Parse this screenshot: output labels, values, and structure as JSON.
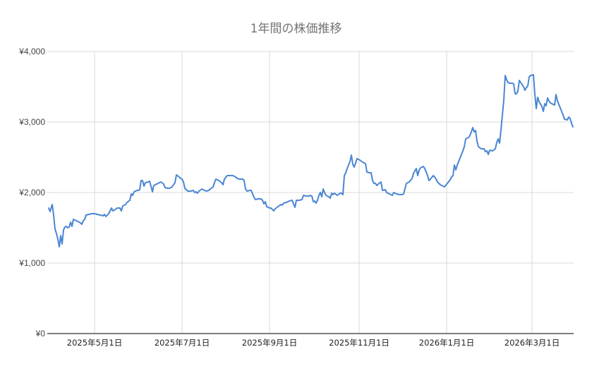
{
  "title": "1年間の株価推移",
  "colors": {
    "line": "#4a86d4",
    "grid": "#d9d9d9",
    "axis": "#333333",
    "title": "#757575"
  },
  "chart_data": {
    "type": "line",
    "title": "1年間の株価推移",
    "xlabel": "",
    "ylabel": "",
    "ylim": [
      0,
      4000
    ],
    "y_ticks": [
      "¥0",
      "¥1,000",
      "¥2,000",
      "¥3,000",
      "¥4,000"
    ],
    "x_ticks": [
      "2025年5月1日",
      "2025年7月1日",
      "2025年9月1日",
      "2025年11月1日",
      "2026年1月1日",
      "2026年3月1日"
    ],
    "x_range": [
      "2025-03-31",
      "2026-03-31"
    ],
    "grid": true,
    "legend": "none",
    "series": [
      {
        "name": "株価",
        "points": [
          [
            69,
            1780
          ],
          [
            71,
            1730
          ],
          [
            74,
            1830
          ],
          [
            76,
            1680
          ],
          [
            78,
            1480
          ],
          [
            80,
            1420
          ],
          [
            82,
            1340
          ],
          [
            84,
            1230
          ],
          [
            86,
            1390
          ],
          [
            88,
            1270
          ],
          [
            90,
            1470
          ],
          [
            92,
            1510
          ],
          [
            94,
            1520
          ],
          [
            96,
            1500
          ],
          [
            98,
            1510
          ],
          [
            100,
            1580
          ],
          [
            102,
            1520
          ],
          [
            104,
            1620
          ],
          [
            106,
            1610
          ],
          [
            110,
            1590
          ],
          [
            114,
            1570
          ],
          [
            116,
            1550
          ],
          [
            118,
            1600
          ],
          [
            120,
            1620
          ],
          [
            122,
            1680
          ],
          [
            126,
            1690
          ],
          [
            130,
            1700
          ],
          [
            134,
            1700
          ],
          [
            138,
            1690
          ],
          [
            142,
            1680
          ],
          [
            146,
            1670
          ],
          [
            148,
            1690
          ],
          [
            150,
            1660
          ],
          [
            154,
            1700
          ],
          [
            158,
            1780
          ],
          [
            160,
            1740
          ],
          [
            162,
            1750
          ],
          [
            166,
            1780
          ],
          [
            170,
            1780
          ],
          [
            172,
            1740
          ],
          [
            174,
            1810
          ],
          [
            178,
            1830
          ],
          [
            180,
            1860
          ],
          [
            184,
            1890
          ],
          [
            186,
            1980
          ],
          [
            188,
            1960
          ],
          [
            190,
            2010
          ],
          [
            194,
            2030
          ],
          [
            196,
            2030
          ],
          [
            198,
            2040
          ],
          [
            200,
            2170
          ],
          [
            202,
            2170
          ],
          [
            204,
            2090
          ],
          [
            206,
            2140
          ],
          [
            210,
            2150
          ],
          [
            212,
            2160
          ],
          [
            214,
            2090
          ],
          [
            216,
            2010
          ],
          [
            218,
            2100
          ],
          [
            222,
            2120
          ],
          [
            226,
            2140
          ],
          [
            228,
            2150
          ],
          [
            232,
            2120
          ],
          [
            234,
            2070
          ],
          [
            238,
            2060
          ],
          [
            240,
            2060
          ],
          [
            244,
            2080
          ],
          [
            246,
            2110
          ],
          [
            248,
            2140
          ],
          [
            250,
            2250
          ],
          [
            254,
            2220
          ],
          [
            256,
            2200
          ],
          [
            258,
            2190
          ],
          [
            260,
            2150
          ],
          [
            262,
            2060
          ],
          [
            266,
            2020
          ],
          [
            270,
            2020
          ],
          [
            274,
            2030
          ],
          [
            276,
            2000
          ],
          [
            278,
            2010
          ],
          [
            280,
            1990
          ],
          [
            282,
            2020
          ],
          [
            286,
            2050
          ],
          [
            288,
            2040
          ],
          [
            292,
            2020
          ],
          [
            296,
            2030
          ],
          [
            298,
            2050
          ],
          [
            302,
            2080
          ],
          [
            304,
            2140
          ],
          [
            306,
            2190
          ],
          [
            310,
            2170
          ],
          [
            314,
            2140
          ],
          [
            316,
            2110
          ],
          [
            318,
            2190
          ],
          [
            322,
            2240
          ],
          [
            326,
            2240
          ],
          [
            330,
            2240
          ],
          [
            334,
            2220
          ],
          [
            336,
            2200
          ],
          [
            340,
            2190
          ],
          [
            344,
            2190
          ],
          [
            346,
            2170
          ],
          [
            348,
            2050
          ],
          [
            350,
            2020
          ],
          [
            354,
            2030
          ],
          [
            356,
            2030
          ],
          [
            358,
            1980
          ],
          [
            360,
            1930
          ],
          [
            362,
            1900
          ],
          [
            366,
            1910
          ],
          [
            370,
            1910
          ],
          [
            372,
            1890
          ],
          [
            374,
            1840
          ],
          [
            376,
            1870
          ],
          [
            378,
            1800
          ],
          [
            382,
            1780
          ],
          [
            384,
            1780
          ],
          [
            386,
            1760
          ],
          [
            388,
            1740
          ],
          [
            390,
            1770
          ],
          [
            394,
            1800
          ],
          [
            398,
            1830
          ],
          [
            400,
            1820
          ],
          [
            402,
            1850
          ],
          [
            406,
            1860
          ],
          [
            410,
            1880
          ],
          [
            414,
            1890
          ],
          [
            416,
            1840
          ],
          [
            418,
            1790
          ],
          [
            420,
            1890
          ],
          [
            424,
            1890
          ],
          [
            428,
            1900
          ],
          [
            430,
            1960
          ],
          [
            434,
            1950
          ],
          [
            438,
            1950
          ],
          [
            440,
            1960
          ],
          [
            442,
            1950
          ],
          [
            444,
            1870
          ],
          [
            446,
            1880
          ],
          [
            448,
            1850
          ],
          [
            450,
            1890
          ],
          [
            452,
            1960
          ],
          [
            454,
            2000
          ],
          [
            456,
            1940
          ],
          [
            458,
            2050
          ],
          [
            460,
            2000
          ],
          [
            462,
            1960
          ],
          [
            466,
            1940
          ],
          [
            468,
            1920
          ],
          [
            470,
            1990
          ],
          [
            472,
            1970
          ],
          [
            474,
            1990
          ],
          [
            478,
            1960
          ],
          [
            482,
            1990
          ],
          [
            484,
            1990
          ],
          [
            486,
            1970
          ],
          [
            488,
            2240
          ],
          [
            490,
            2280
          ],
          [
            492,
            2340
          ],
          [
            496,
            2440
          ],
          [
            498,
            2530
          ],
          [
            500,
            2400
          ],
          [
            502,
            2360
          ],
          [
            504,
            2420
          ],
          [
            506,
            2480
          ],
          [
            510,
            2460
          ],
          [
            514,
            2430
          ],
          [
            518,
            2410
          ],
          [
            520,
            2290
          ],
          [
            524,
            2280
          ],
          [
            526,
            2280
          ],
          [
            528,
            2170
          ],
          [
            530,
            2130
          ],
          [
            532,
            2130
          ],
          [
            534,
            2100
          ],
          [
            536,
            2120
          ],
          [
            540,
            2150
          ],
          [
            542,
            2030
          ],
          [
            546,
            2040
          ],
          [
            548,
            2000
          ],
          [
            552,
            1980
          ],
          [
            554,
            1970
          ],
          [
            556,
            1960
          ],
          [
            558,
            2000
          ],
          [
            562,
            1980
          ],
          [
            566,
            1970
          ],
          [
            570,
            1970
          ],
          [
            572,
            1980
          ],
          [
            576,
            2130
          ],
          [
            580,
            2150
          ],
          [
            584,
            2200
          ],
          [
            586,
            2270
          ],
          [
            590,
            2340
          ],
          [
            592,
            2240
          ],
          [
            594,
            2320
          ],
          [
            596,
            2350
          ],
          [
            600,
            2370
          ],
          [
            602,
            2340
          ],
          [
            606,
            2240
          ],
          [
            608,
            2170
          ],
          [
            610,
            2190
          ],
          [
            614,
            2240
          ],
          [
            616,
            2220
          ],
          [
            618,
            2190
          ],
          [
            620,
            2150
          ],
          [
            624,
            2110
          ],
          [
            628,
            2090
          ],
          [
            630,
            2080
          ],
          [
            634,
            2130
          ],
          [
            638,
            2180
          ],
          [
            640,
            2220
          ],
          [
            642,
            2240
          ],
          [
            644,
            2390
          ],
          [
            646,
            2320
          ],
          [
            648,
            2390
          ],
          [
            652,
            2490
          ],
          [
            656,
            2590
          ],
          [
            658,
            2650
          ],
          [
            660,
            2760
          ],
          [
            664,
            2780
          ],
          [
            666,
            2810
          ],
          [
            668,
            2860
          ],
          [
            670,
            2920
          ],
          [
            672,
            2860
          ],
          [
            674,
            2880
          ],
          [
            676,
            2730
          ],
          [
            678,
            2650
          ],
          [
            682,
            2620
          ],
          [
            686,
            2620
          ],
          [
            688,
            2580
          ],
          [
            690,
            2590
          ],
          [
            692,
            2540
          ],
          [
            694,
            2600
          ],
          [
            698,
            2590
          ],
          [
            702,
            2620
          ],
          [
            704,
            2710
          ],
          [
            706,
            2760
          ],
          [
            708,
            2700
          ],
          [
            710,
            2890
          ],
          [
            714,
            3310
          ],
          [
            716,
            3660
          ],
          [
            718,
            3600
          ],
          [
            720,
            3560
          ],
          [
            722,
            3550
          ],
          [
            726,
            3550
          ],
          [
            728,
            3540
          ],
          [
            730,
            3400
          ],
          [
            732,
            3400
          ],
          [
            734,
            3440
          ],
          [
            736,
            3590
          ],
          [
            738,
            3560
          ],
          [
            742,
            3500
          ],
          [
            744,
            3450
          ],
          [
            746,
            3490
          ],
          [
            748,
            3510
          ],
          [
            750,
            3640
          ],
          [
            752,
            3660
          ],
          [
            756,
            3670
          ],
          [
            758,
            3390
          ],
          [
            760,
            3190
          ],
          [
            762,
            3350
          ],
          [
            764,
            3290
          ],
          [
            768,
            3220
          ],
          [
            770,
            3150
          ],
          [
            772,
            3260
          ],
          [
            774,
            3230
          ],
          [
            776,
            3340
          ],
          [
            778,
            3300
          ],
          [
            780,
            3270
          ],
          [
            782,
            3260
          ],
          [
            786,
            3240
          ],
          [
            788,
            3390
          ],
          [
            790,
            3300
          ],
          [
            794,
            3200
          ],
          [
            798,
            3100
          ],
          [
            800,
            3040
          ],
          [
            804,
            3030
          ],
          [
            806,
            3070
          ],
          [
            808,
            3050
          ],
          [
            810,
            2980
          ],
          [
            812,
            2930
          ]
        ]
      }
    ]
  }
}
